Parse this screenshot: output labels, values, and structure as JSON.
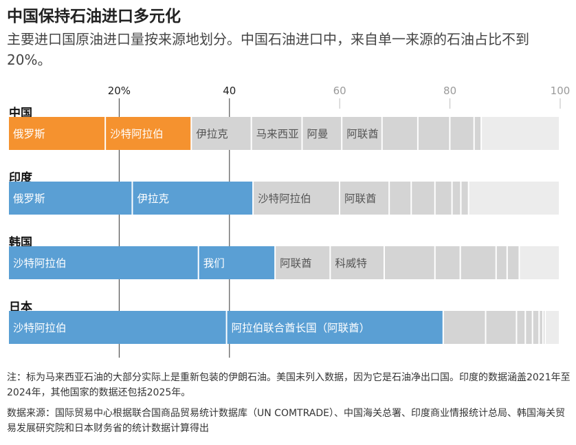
{
  "header": {
    "title": "中国保持石油进口多元化",
    "subtitle": "主要进口国原油进口量按来源地划分。中国石油进口中，来自单一来源的石油占比不到20%。"
  },
  "footer": {
    "note": "注：标为马来西亚石油的大部分实际上是重新包装的伊朗石油。美国未列入数据，因为它是石油净出口国。印度的数据涵盖2021年至2024年，其他国家的数据还包括2025年。",
    "source": "数据来源：国际贸易中心根据联合国商品贸易统计数据库（UN COMTRADE）、中国海关总署、印度商业情报统计总局、韩国海关贸易发展研究院和日本财务省的统计数据计算得出"
  },
  "colors": {
    "china_highlight": "#f5922f",
    "other_highlight": "#5a9fd4",
    "other_sources": "#d4d4d4",
    "remainder": "#ececec",
    "text_on_color": "#ffffff",
    "text_on_grey": "#555555"
  },
  "chart_data": {
    "type": "bar",
    "orientation": "horizontal-stacked",
    "unit": "%",
    "xlim": [
      0,
      100
    ],
    "ticks": [
      {
        "value": 20,
        "label": "20%",
        "emphasis": true
      },
      {
        "value": 40,
        "label": "40",
        "emphasis": true
      },
      {
        "value": 60,
        "label": "60",
        "emphasis": false
      },
      {
        "value": 80,
        "label": "80",
        "emphasis": false
      },
      {
        "value": 100,
        "label": "100",
        "emphasis": false
      }
    ],
    "countries": [
      {
        "name": "中国",
        "segments": [
          {
            "label": "俄罗斯",
            "value": 17.6,
            "kind": "highlight"
          },
          {
            "label": "沙特阿拉伯",
            "value": 15.6,
            "kind": "highlight"
          },
          {
            "label": "伊拉克",
            "value": 10.9,
            "kind": "other"
          },
          {
            "label": "马来西亚",
            "value": 9.2,
            "kind": "other"
          },
          {
            "label": "阿曼",
            "value": 7.2,
            "kind": "other"
          },
          {
            "label": "阿联酋",
            "value": 7.3,
            "kind": "other"
          },
          {
            "label": "",
            "value": 6.5,
            "kind": "other"
          },
          {
            "label": "",
            "value": 5.8,
            "kind": "other"
          },
          {
            "label": "",
            "value": 4.4,
            "kind": "other"
          },
          {
            "label": "",
            "value": 1.3,
            "kind": "other"
          },
          {
            "label": "",
            "value": 14.2,
            "kind": "remainder"
          }
        ]
      },
      {
        "name": "印度",
        "segments": [
          {
            "label": "俄罗斯",
            "value": 22.5,
            "kind": "highlight"
          },
          {
            "label": "伊拉克",
            "value": 21.9,
            "kind": "highlight"
          },
          {
            "label": "沙特阿拉伯",
            "value": 15.7,
            "kind": "other"
          },
          {
            "label": "阿联酋",
            "value": 9.0,
            "kind": "other"
          },
          {
            "label": "",
            "value": 4.0,
            "kind": "other"
          },
          {
            "label": "",
            "value": 4.3,
            "kind": "other"
          },
          {
            "label": "",
            "value": 3.1,
            "kind": "other"
          },
          {
            "label": "",
            "value": 1.6,
            "kind": "other"
          },
          {
            "label": "",
            "value": 1.4,
            "kind": "other"
          },
          {
            "label": "",
            "value": 16.5,
            "kind": "remainder"
          }
        ]
      },
      {
        "name": "韩国",
        "segments": [
          {
            "label": "沙特阿拉伯",
            "value": 34.5,
            "kind": "highlight"
          },
          {
            "label": "我们",
            "value": 13.9,
            "kind": "highlight"
          },
          {
            "label": "阿联酋",
            "value": 10.0,
            "kind": "other"
          },
          {
            "label": "科威特",
            "value": 9.8,
            "kind": "other"
          },
          {
            "label": "",
            "value": 9.2,
            "kind": "other"
          },
          {
            "label": "",
            "value": 4.6,
            "kind": "other"
          },
          {
            "label": "",
            "value": 6.5,
            "kind": "other"
          },
          {
            "label": "",
            "value": 2.0,
            "kind": "other"
          },
          {
            "label": "",
            "value": 2.2,
            "kind": "other"
          },
          {
            "label": "",
            "value": 7.3,
            "kind": "remainder"
          }
        ]
      },
      {
        "name": "日本",
        "segments": [
          {
            "label": "沙特阿拉伯",
            "value": 39.6,
            "kind": "highlight"
          },
          {
            "label": "阿拉伯联合酋长国（阿联酋）",
            "value": 39.3,
            "kind": "highlight"
          },
          {
            "label": "",
            "value": 7.7,
            "kind": "other"
          },
          {
            "label": "",
            "value": 5.6,
            "kind": "other"
          },
          {
            "label": "",
            "value": 1.6,
            "kind": "other"
          },
          {
            "label": "",
            "value": 1.3,
            "kind": "other"
          },
          {
            "label": "",
            "value": 1.2,
            "kind": "other"
          },
          {
            "label": "",
            "value": 0.7,
            "kind": "other"
          },
          {
            "label": "",
            "value": 0.4,
            "kind": "other"
          },
          {
            "label": "",
            "value": 2.6,
            "kind": "remainder"
          }
        ]
      }
    ]
  }
}
